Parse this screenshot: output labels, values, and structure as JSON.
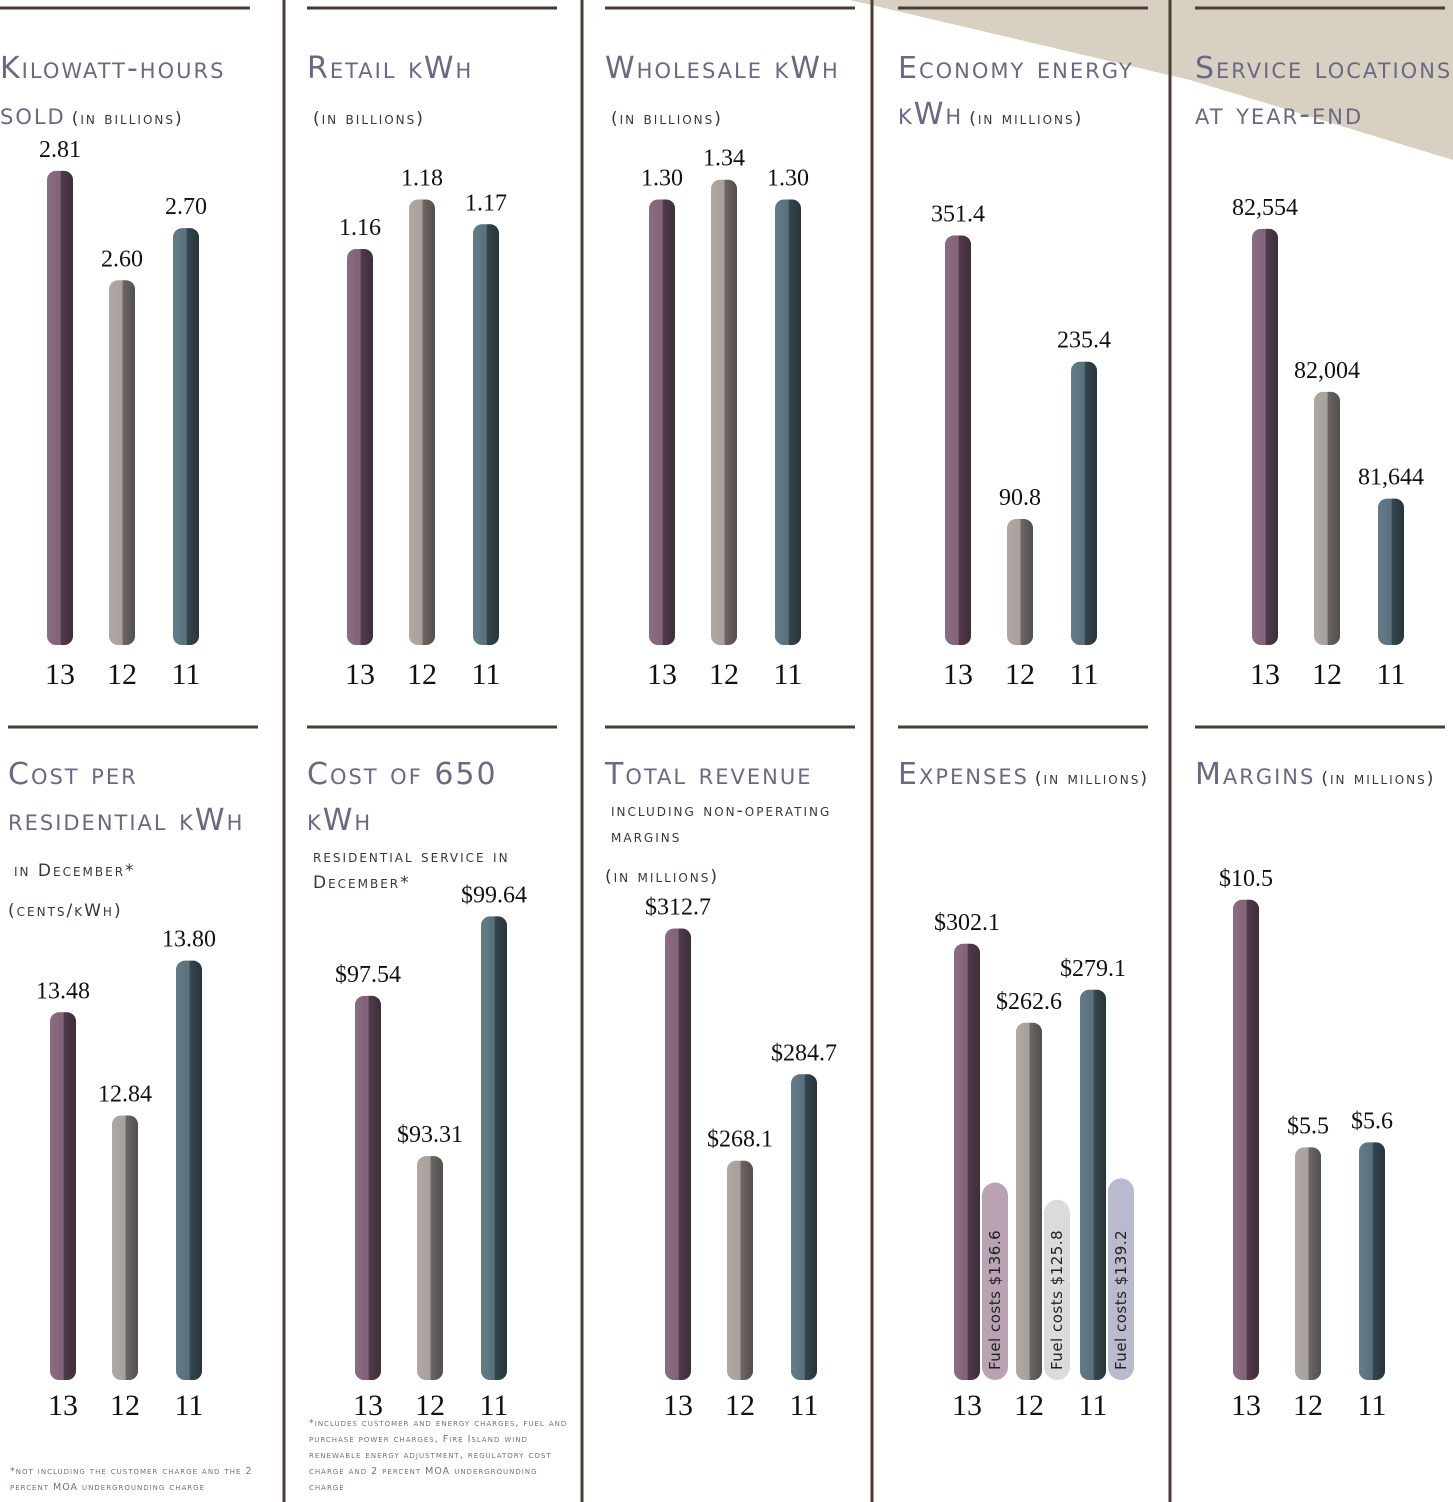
{
  "chart_data": [
    {
      "type": "bar",
      "title": "Kilowatt-hours sold",
      "subtitle": "(in billions)",
      "categories": [
        "13",
        "12",
        "11"
      ],
      "values": [
        2.81,
        2.6,
        2.7
      ],
      "value_labels": [
        "2.81",
        "2.60",
        "2.70"
      ],
      "colors": [
        "#7b5a72",
        "#a59c97",
        "#4f6a77"
      ],
      "ylim": [
        1.9,
        2.85
      ]
    },
    {
      "type": "bar",
      "title": "Retail kWh",
      "subtitle": "(in billions)",
      "categories": [
        "13",
        "12",
        "11"
      ],
      "values": [
        1.16,
        1.18,
        1.17
      ],
      "colors": [
        "#7b5a72",
        "#a59c97",
        "#4f6a77"
      ],
      "ylim": [
        1.0,
        1.2
      ]
    },
    {
      "type": "bar",
      "title": "Wholesale kWh",
      "subtitle": "(in billions)",
      "categories": [
        "13",
        "12",
        "11"
      ],
      "values": [
        1.3,
        1.34,
        1.3
      ],
      "value_labels": [
        "1.30",
        "1.34",
        "1.30"
      ],
      "colors": [
        "#7b5a72",
        "#a59c97",
        "#4f6a77"
      ],
      "ylim": [
        0.4,
        1.4
      ]
    },
    {
      "type": "bar",
      "title": "Economy energy kWh",
      "subtitle": "(in millions)",
      "categories": [
        "13",
        "12",
        "11"
      ],
      "values": [
        351.4,
        90.8,
        235.4
      ],
      "colors": [
        "#7b5a72",
        "#a59c97",
        "#4f6a77"
      ],
      "ylim": [
        -25,
        430
      ]
    },
    {
      "type": "bar",
      "title": "Service locations at year-end",
      "categories": [
        "13",
        "12",
        "11"
      ],
      "values": [
        82554,
        82004,
        81644
      ],
      "value_labels": [
        "82,554",
        "82,004",
        "81,644"
      ],
      "colors": [
        "#7b5a72",
        "#a59c97",
        "#4f6a77"
      ],
      "ylim": [
        81150,
        82820
      ]
    },
    {
      "type": "bar",
      "title": "Cost per residential kWh",
      "subtitle": "in December*",
      "unit": "(cents/kWh)",
      "categories": [
        "13",
        "12",
        "11"
      ],
      "values": [
        13.48,
        12.84,
        13.8
      ],
      "value_labels": [
        "13.48",
        "12.84",
        "13.80"
      ],
      "colors": [
        "#7b5a72",
        "#a59c97",
        "#4f6a77"
      ],
      "ylim": [
        11.2,
        14.3
      ],
      "note": "*not including the customer charge and the 2 percent MOA undergrounding charge"
    },
    {
      "type": "bar",
      "title": "Cost of 650 kWh",
      "subtitle": "residential service in December*",
      "categories": [
        "13",
        "12",
        "11"
      ],
      "values": [
        97.54,
        93.31,
        99.64
      ],
      "value_labels": [
        "$97.54",
        "$93.31",
        "$99.64"
      ],
      "colors": [
        "#7b5a72",
        "#a59c97",
        "#4f6a77"
      ],
      "ylim": [
        87.4,
        100.6
      ],
      "note": "*includes customer and energy charges, fuel and purchase power charges, Fire Island wind renewable energy adjustment, regulatory cost charge and 2 percent MOA undergrounding charge"
    },
    {
      "type": "bar",
      "title": "Total revenue",
      "subtitle": "including non-operating margins",
      "unit": "(in millions)",
      "categories": [
        "13",
        "12",
        "11"
      ],
      "values": [
        312.7,
        268.1,
        284.7
      ],
      "value_labels": [
        "$312.7",
        "$268.1",
        "$284.7"
      ],
      "colors": [
        "#7b5a72",
        "#a59c97",
        "#4f6a77"
      ],
      "ylim": [
        226,
        322
      ]
    },
    {
      "type": "bar",
      "title": "Expenses",
      "subtitle": "(in millions)",
      "categories": [
        "13",
        "12",
        "11"
      ],
      "colors": [
        "#7b5a72",
        "#a59c97",
        "#4f6a77"
      ],
      "ylim": [
        84,
        334
      ],
      "y2lim": [
        13,
        326
      ],
      "series": [
        {
          "values": [
            302.1,
            262.6,
            279.1
          ],
          "value_labels": [
            "$302.1",
            "$262.6",
            "$279.1"
          ],
          "colors": [
            "#7b5a72",
            "#a59c97",
            "#4f6a77"
          ]
        },
        {
          "axis": "y2",
          "values": [
            136.6,
            125.8,
            139.2
          ],
          "value_labels": [
            "Fuel costs $136.6",
            "Fuel costs $125.8",
            "Fuel costs $139.2"
          ],
          "colors": [
            "#b9a3b2",
            "#dddbd9",
            "#b9bacd"
          ]
        }
      ]
    },
    {
      "type": "bar",
      "title": "Margins",
      "subtitle": "(in millions)",
      "categories": [
        "13",
        "12",
        "11"
      ],
      "values": [
        10.5,
        5.5,
        5.6
      ],
      "value_labels": [
        "$10.5",
        "$5.5",
        "$5.6"
      ],
      "colors": [
        "#7b5a72",
        "#a59c97",
        "#4f6a77"
      ],
      "ylim": [
        0.8,
        10.9
      ]
    }
  ]
}
